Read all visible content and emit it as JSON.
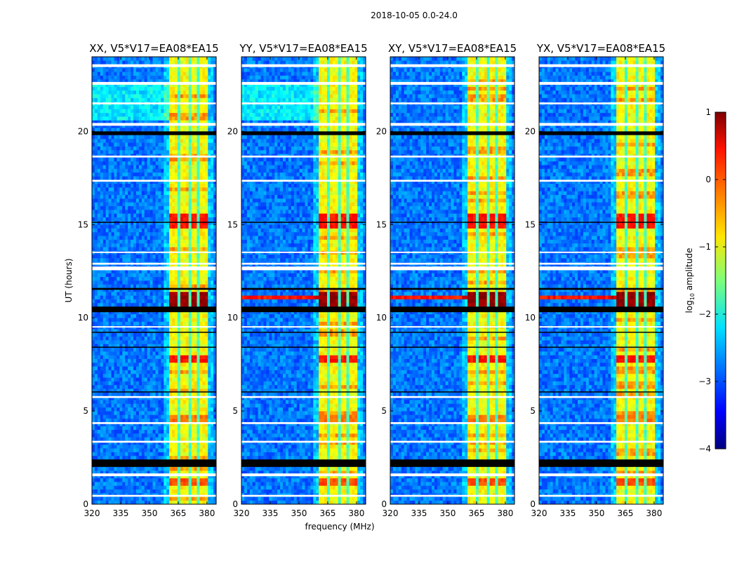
{
  "chart_data": {
    "type": "heatmap",
    "suptitle": "2018-10-05 0.0-24.0",
    "xlabel": "frequency (MHz)",
    "ylabel": "UT (hours)",
    "xlim": [
      320,
      384.8
    ],
    "ylim": [
      0,
      24
    ],
    "xticks": [
      320,
      335,
      350,
      365,
      380
    ],
    "yticks": [
      0,
      5,
      10,
      15,
      20
    ],
    "panels": [
      {
        "title": "XX, V5*V17=EA08*EA15",
        "cyan_background": true
      },
      {
        "title": "YY, V5*V17=EA08*EA15",
        "cyan_background": true
      },
      {
        "title": "XY, V5*V17=EA08*EA15",
        "cyan_background": false
      },
      {
        "title": "YX, V5*V17=EA08*EA15",
        "cyan_background": false
      }
    ],
    "colorbar": {
      "label": "log10 amplitude",
      "label_main": "log",
      "label_sub": "10",
      "label_rest": " amplitude",
      "colormap": "jet",
      "range": [
        -4,
        1
      ],
      "ticks": [
        1,
        0,
        -1,
        -2,
        -3,
        -4
      ],
      "tick_labels": [
        "1",
        "0",
        "−1",
        "−2",
        "−3",
        "−4"
      ]
    },
    "model": {
      "background_log_amp": -2.8,
      "band_mhz": [
        361,
        381
      ],
      "band_log_amp": -0.9,
      "subband_edges_mhz": [
        366,
        371,
        376
      ],
      "bright_intervals_hours": [
        {
          "range": [
            10.7,
            11.4
          ],
          "log_amp": 0.9
        },
        {
          "range": [
            14.9,
            15.6
          ],
          "log_amp": 0.3
        },
        {
          "range": [
            7.7,
            8.0
          ],
          "log_amp": 0.3
        },
        {
          "range": [
            1.0,
            1.3
          ],
          "log_amp": 0.0
        },
        {
          "range": [
            4.5,
            4.7
          ],
          "log_amp": -0.2
        }
      ],
      "flagged_hours": [
        [
          23.45,
          23.6
        ],
        [
          22.5,
          22.65
        ],
        [
          21.45,
          21.55
        ],
        [
          20.3,
          20.45
        ],
        [
          18.6,
          18.7
        ],
        [
          17.3,
          17.4
        ],
        [
          12.55,
          12.75
        ],
        [
          12.85,
          12.95
        ],
        [
          13.5,
          13.55
        ],
        [
          9.5,
          9.55
        ],
        [
          5.7,
          5.8
        ],
        [
          4.3,
          4.4
        ],
        [
          3.3,
          3.4
        ],
        [
          1.5,
          1.65
        ],
        [
          0.4,
          0.5
        ]
      ],
      "dark_hours": [
        [
          19.8,
          20.0
        ],
        [
          2.0,
          2.4
        ],
        [
          10.3,
          10.6
        ],
        [
          11.5,
          11.6
        ],
        [
          15.1,
          15.15
        ],
        [
          9.2,
          9.25
        ],
        [
          8.4,
          8.45
        ],
        [
          6.0,
          6.05
        ]
      ]
    }
  }
}
